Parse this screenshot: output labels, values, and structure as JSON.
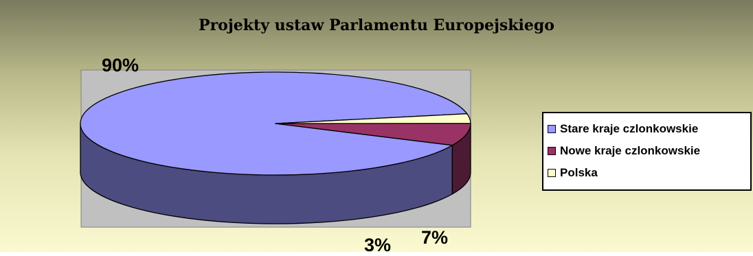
{
  "chart_data": {
    "type": "pie",
    "style": "3d",
    "title": "Projekty ustaw Parlamentu Europejskiego",
    "legend_position": "right",
    "slices": [
      {
        "name": "Stare kraje czlonkowskie",
        "value": 90,
        "label": "90%",
        "color": "#9999ff",
        "side_color": "#4c4c80"
      },
      {
        "name": "Nowe kraje czlonkowskie",
        "value": 7,
        "label": "7%",
        "color": "#993366",
        "side_color": "#4d1a33"
      },
      {
        "name": "Polska",
        "value": 3,
        "label": "3%",
        "color": "#ffffcc",
        "side_color": "#808066"
      }
    ]
  },
  "colors": {
    "plot_area": "#c0c0c0",
    "outline": "#000000",
    "legend_background": "#ffffff"
  }
}
